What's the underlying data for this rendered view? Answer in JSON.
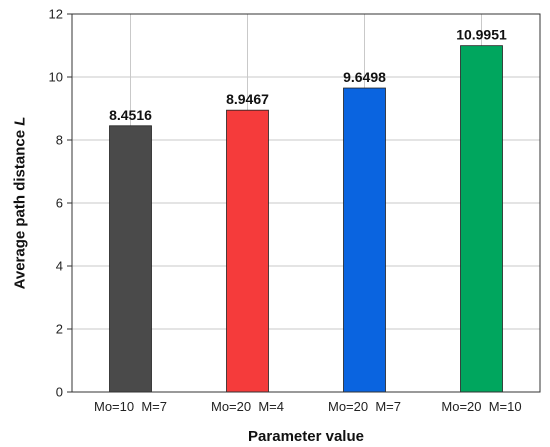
{
  "chart_data": {
    "type": "bar",
    "categories": [
      "Mo=10  M=7",
      "Mo=20  M=4",
      "Mo=20  M=7",
      "Mo=20  M=10"
    ],
    "values": [
      8.4516,
      8.9467,
      9.6498,
      10.9951
    ],
    "data_labels": [
      "8.4516",
      "8.9467",
      "9.6498",
      "10.9951"
    ],
    "colors": [
      "#4a4a4a",
      "#f53b3b",
      "#0a64e0",
      "#00a65e"
    ],
    "title": "",
    "xlabel": "Parameter value",
    "ylabel_main": "Average path distance ",
    "ylabel_var": "L",
    "ylim": [
      0,
      12
    ],
    "yticks": [
      0,
      2,
      4,
      6,
      8,
      10,
      12
    ],
    "grid": true
  }
}
